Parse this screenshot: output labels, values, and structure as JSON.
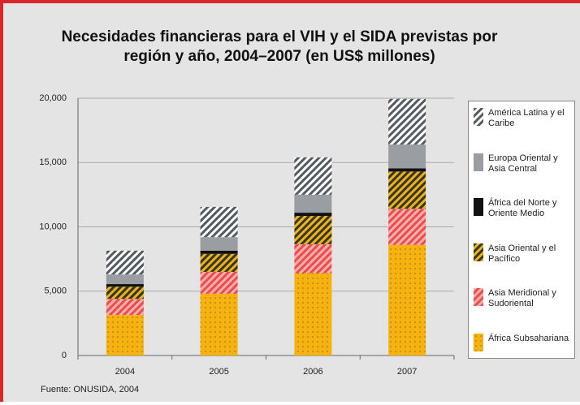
{
  "chart_data": {
    "type": "stacked_bar",
    "title": "Necesidades financieras para el VIH y el SIDA previstas por región y año, 2004–2007 (en US$ millones)",
    "source": "Fuente: ONUSIDA, 2004",
    "categories": [
      "2004",
      "2005",
      "2006",
      "2007"
    ],
    "ylim": [
      0,
      20000
    ],
    "yticks": [
      0,
      {
        "value": 5000,
        "label": "5,000"
      },
      {
        "value": 10000,
        "label": "10,000"
      },
      {
        "value": 15000,
        "label": "15,000"
      },
      {
        "value": 20000,
        "label": "20,000"
      }
    ],
    "grid": true,
    "legend": "right",
    "series": [
      {
        "name": "África Subsahariana",
        "color": "#f6b210",
        "pattern": "dots",
        "values": [
          3150,
          4800,
          6400,
          8600
        ]
      },
      {
        "name": "Asia Meridional y Sudoriental",
        "color": "#ee4b4b",
        "pattern": "hatch",
        "values": [
          1250,
          1700,
          2250,
          2800
        ]
      },
      {
        "name": "Asia Oriental y el Pacífico",
        "color": "#e8b41c",
        "pattern": "hatch",
        "values": [
          950,
          1400,
          2200,
          2900
        ]
      },
      {
        "name": "África del Norte y Oriente Medio",
        "color": "#111111",
        "pattern": "solid",
        "values": [
          200,
          250,
          250,
          250
        ]
      },
      {
        "name": "Europa Oriental y Asia Central",
        "color": "#9a9da2",
        "pattern": "solid",
        "values": [
          750,
          1050,
          1400,
          1850
        ]
      },
      {
        "name": "América Latina y el Caribe",
        "color": "#555a60",
        "pattern": "hatch",
        "values": [
          1850,
          2350,
          2900,
          3550
        ]
      }
    ]
  }
}
